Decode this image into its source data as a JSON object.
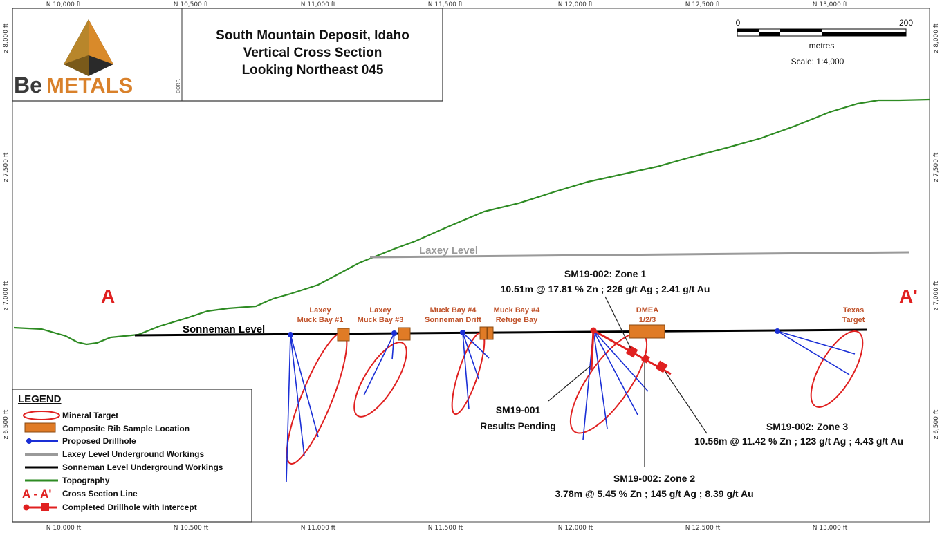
{
  "title": {
    "line1": "South Mountain Deposit, Idaho",
    "line2": "Vertical Cross Section",
    "line3": "Looking Northeast 045"
  },
  "logo": {
    "text_be": "Be",
    "text_metals": "METALS",
    "text_corp": "CORP."
  },
  "scale_bar": {
    "start": "0",
    "end": "200",
    "unit": "metres",
    "scale": "Scale: 1:4,000"
  },
  "top_axis": [
    "N 10,000 ft",
    "N 10,500 ft",
    "N 11,000 ft",
    "N 11,500 ft",
    "N 12,000 ft",
    "N 12,500 ft",
    "N 13,000 ft"
  ],
  "bottom_axis": [
    "N 10,000 ft",
    "N 10,500 ft",
    "N 11,000 ft",
    "N 11,500 ft",
    "N 12,000 ft",
    "N 12,500 ft",
    "N 13,000 ft"
  ],
  "left_axis": [
    "z 8,000 ft",
    "z 7,500 ft",
    "z 7,000 ft",
    "z 6,500 ft"
  ],
  "right_axis": [
    "z 8,000 ft",
    "z 7,500 ft",
    "z 7,000 ft",
    "z 6,500 ft"
  ],
  "section": {
    "a": "A",
    "a_prime": "A'"
  },
  "levels": {
    "laxey": "Laxey Level",
    "sonneman": "Sonneman Level"
  },
  "targets": {
    "t1": [
      "Laxey",
      "Muck Bay #1"
    ],
    "t2": [
      "Laxey",
      "Muck Bay #3"
    ],
    "t3": [
      "Muck Bay #4",
      "Sonneman Drift"
    ],
    "t4": [
      "Muck Bay #4",
      "Refuge Bay"
    ],
    "t5": [
      "DMEA",
      "1/2/3"
    ],
    "t6": [
      "Texas",
      "Target"
    ]
  },
  "annotations": {
    "zone1_title": "SM19-002: Zone 1",
    "zone1_value": "10.51m @ 17.81 % Zn ; 226 g/t Ag ; 2.41 g/t Au",
    "zone2_title": "SM19-002: Zone 2",
    "zone2_value": "3.78m @ 5.45 % Zn ; 145 g/t Ag ; 8.39 g/t Au",
    "zone3_title": "SM19-002: Zone 3",
    "zone3_value": "10.56m @ 11.42 % Zn ; 123 g/t Ag ; 4.43 g/t Au",
    "sm19001_title": "SM19-001",
    "sm19001_value": "Results Pending"
  },
  "legend": {
    "title": "LEGEND",
    "items": [
      "Mineral Target",
      "Composite Rib Sample Location",
      "Proposed Drillhole",
      "Laxey Level Underground Workings",
      "Sonneman Level Underground Workings",
      "Topography",
      "Cross Section Line",
      "Completed Drillhole with Intercept"
    ],
    "section_symbol": "A - A'"
  },
  "colors": {
    "topography": "#2e8b23",
    "laxey": "#9a9a9a",
    "sonneman": "#000000",
    "drill": "#1a2fd6",
    "target": "#e02020",
    "rib": "#e07b26",
    "label_orange": "#c0522a"
  }
}
